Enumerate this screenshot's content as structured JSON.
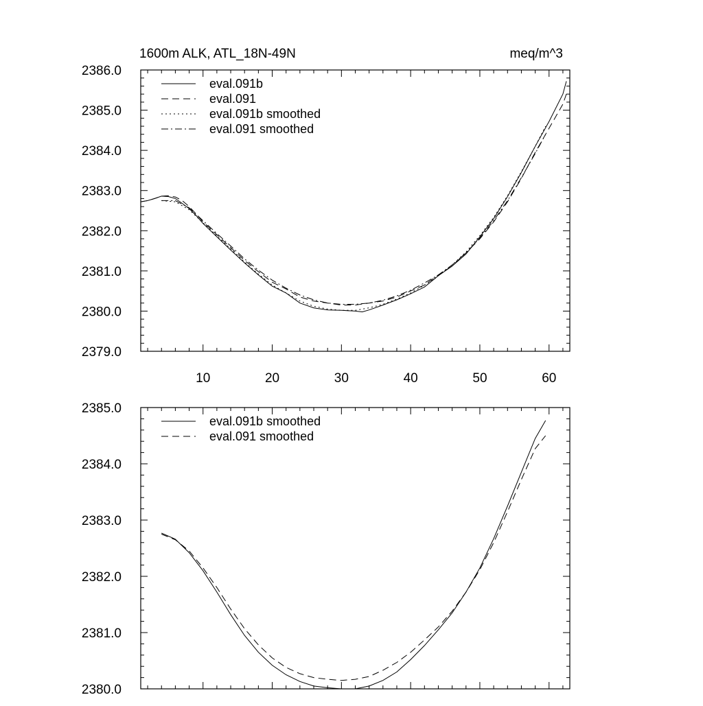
{
  "chart_data": [
    {
      "type": "line",
      "title": "1600m ALK, ATL_18N-49N",
      "units": "meq/m^3",
      "xlim": [
        1,
        63
      ],
      "ylim": [
        2379.0,
        2386.0
      ],
      "x_ticks": [
        10,
        20,
        30,
        40,
        50,
        60
      ],
      "x_tick_labels": [
        "10",
        "20",
        "30",
        "40",
        "50",
        "60"
      ],
      "y_ticks": [
        2379.0,
        2380.0,
        2381.0,
        2382.0,
        2383.0,
        2384.0,
        2385.0,
        2386.0
      ],
      "y_tick_labels": [
        "2379.0",
        "2380.0",
        "2381.0",
        "2382.0",
        "2383.0",
        "2384.0",
        "2385.0",
        "2386.0"
      ],
      "legend_position": "top-left",
      "series": [
        {
          "name": "eval.091b",
          "dash": "solid",
          "points": [
            [
              1,
              2382.72
            ],
            [
              2,
              2382.75
            ],
            [
              3,
              2382.8
            ],
            [
              4,
              2382.86
            ],
            [
              5,
              2382.85
            ],
            [
              6,
              2382.8
            ],
            [
              7,
              2382.68
            ],
            [
              8,
              2382.55
            ],
            [
              9,
              2382.38
            ],
            [
              10,
              2382.18
            ],
            [
              12,
              2381.85
            ],
            [
              14,
              2381.52
            ],
            [
              16,
              2381.2
            ],
            [
              18,
              2380.9
            ],
            [
              20,
              2380.62
            ],
            [
              22,
              2380.45
            ],
            [
              24,
              2380.2
            ],
            [
              26,
              2380.08
            ],
            [
              28,
              2380.03
            ],
            [
              30,
              2380.02
            ],
            [
              32,
              2380.0
            ],
            [
              33,
              2379.98
            ],
            [
              34,
              2380.03
            ],
            [
              36,
              2380.15
            ],
            [
              38,
              2380.28
            ],
            [
              40,
              2380.43
            ],
            [
              42,
              2380.6
            ],
            [
              44,
              2380.88
            ],
            [
              46,
              2381.12
            ],
            [
              48,
              2381.42
            ],
            [
              50,
              2381.85
            ],
            [
              52,
              2382.3
            ],
            [
              54,
              2382.85
            ],
            [
              56,
              2383.45
            ],
            [
              58,
              2384.1
            ],
            [
              60,
              2384.72
            ],
            [
              62,
              2385.4
            ],
            [
              62.5,
              2385.72
            ]
          ]
        },
        {
          "name": "eval.091",
          "dash": "long",
          "points": [
            [
              1,
              2382.72
            ],
            [
              2,
              2382.75
            ],
            [
              3,
              2382.8
            ],
            [
              4,
              2382.86
            ],
            [
              5,
              2382.87
            ],
            [
              6,
              2382.84
            ],
            [
              7,
              2382.75
            ],
            [
              8,
              2382.6
            ],
            [
              9,
              2382.42
            ],
            [
              10,
              2382.22
            ],
            [
              12,
              2381.9
            ],
            [
              14,
              2381.58
            ],
            [
              16,
              2381.26
            ],
            [
              18,
              2380.98
            ],
            [
              20,
              2380.72
            ],
            [
              22,
              2380.55
            ],
            [
              24,
              2380.35
            ],
            [
              26,
              2380.25
            ],
            [
              28,
              2380.2
            ],
            [
              30,
              2380.15
            ],
            [
              32,
              2380.15
            ],
            [
              34,
              2380.2
            ],
            [
              36,
              2380.25
            ],
            [
              38,
              2380.35
            ],
            [
              40,
              2380.5
            ],
            [
              42,
              2380.65
            ],
            [
              44,
              2380.9
            ],
            [
              46,
              2381.12
            ],
            [
              48,
              2381.45
            ],
            [
              50,
              2381.8
            ],
            [
              52,
              2382.22
            ],
            [
              54,
              2382.72
            ],
            [
              56,
              2383.3
            ],
            [
              58,
              2383.95
            ],
            [
              60,
              2384.55
            ],
            [
              62,
              2385.15
            ],
            [
              62.5,
              2385.4
            ]
          ]
        },
        {
          "name": "eval.091b smoothed",
          "dash": "dot",
          "points": [
            [
              4,
              2382.75
            ],
            [
              6,
              2382.72
            ],
            [
              8,
              2382.52
            ],
            [
              10,
              2382.2
            ],
            [
              12,
              2381.87
            ],
            [
              14,
              2381.55
            ],
            [
              16,
              2381.22
            ],
            [
              18,
              2380.92
            ],
            [
              20,
              2380.65
            ],
            [
              22,
              2380.45
            ],
            [
              24,
              2380.25
            ],
            [
              26,
              2380.12
            ],
            [
              28,
              2380.05
            ],
            [
              30,
              2380.02
            ],
            [
              32,
              2380.02
            ],
            [
              34,
              2380.08
            ],
            [
              36,
              2380.17
            ],
            [
              38,
              2380.3
            ],
            [
              40,
              2380.45
            ],
            [
              42,
              2380.65
            ],
            [
              44,
              2380.88
            ],
            [
              46,
              2381.15
            ],
            [
              48,
              2381.47
            ],
            [
              50,
              2381.88
            ],
            [
              52,
              2382.33
            ],
            [
              54,
              2382.87
            ],
            [
              56,
              2383.47
            ],
            [
              58,
              2384.1
            ],
            [
              59.5,
              2384.6
            ]
          ]
        },
        {
          "name": "eval.091 smoothed",
          "dash": "dashdot",
          "points": [
            [
              4,
              2382.75
            ],
            [
              6,
              2382.75
            ],
            [
              8,
              2382.57
            ],
            [
              10,
              2382.25
            ],
            [
              12,
              2381.93
            ],
            [
              14,
              2381.62
            ],
            [
              16,
              2381.3
            ],
            [
              18,
              2381.02
            ],
            [
              20,
              2380.77
            ],
            [
              22,
              2380.57
            ],
            [
              24,
              2380.4
            ],
            [
              26,
              2380.28
            ],
            [
              28,
              2380.2
            ],
            [
              30,
              2380.17
            ],
            [
              32,
              2380.17
            ],
            [
              34,
              2380.2
            ],
            [
              36,
              2380.27
            ],
            [
              38,
              2380.38
            ],
            [
              40,
              2380.52
            ],
            [
              42,
              2380.7
            ],
            [
              44,
              2380.9
            ],
            [
              46,
              2381.15
            ],
            [
              48,
              2381.45
            ],
            [
              50,
              2381.82
            ],
            [
              52,
              2382.25
            ],
            [
              54,
              2382.75
            ],
            [
              56,
              2383.32
            ],
            [
              58,
              2383.92
            ],
            [
              59.5,
              2384.4
            ]
          ]
        }
      ]
    },
    {
      "type": "line",
      "xlim": [
        1,
        63
      ],
      "ylim": [
        2380.0,
        2385.0
      ],
      "x_ticks": [
        10,
        20,
        30,
        40,
        50,
        60
      ],
      "y_ticks": [
        2380.0,
        2381.0,
        2382.0,
        2383.0,
        2384.0,
        2385.0
      ],
      "y_tick_labels": [
        "2380.0",
        "2381.0",
        "2382.0",
        "2383.0",
        "2384.0",
        "2385.0"
      ],
      "legend_position": "top-left",
      "series": [
        {
          "name": "eval.091b smoothed",
          "dash": "solid",
          "points": [
            [
              4,
              2382.77
            ],
            [
              6,
              2382.66
            ],
            [
              8,
              2382.42
            ],
            [
              10,
              2382.1
            ],
            [
              12,
              2381.72
            ],
            [
              14,
              2381.32
            ],
            [
              16,
              2380.95
            ],
            [
              18,
              2380.65
            ],
            [
              20,
              2380.42
            ],
            [
              22,
              2380.25
            ],
            [
              24,
              2380.13
            ],
            [
              26,
              2380.05
            ],
            [
              28,
              2380.02
            ],
            [
              30,
              2380.0
            ],
            [
              32,
              2380.0
            ],
            [
              34,
              2380.05
            ],
            [
              36,
              2380.15
            ],
            [
              38,
              2380.3
            ],
            [
              40,
              2380.52
            ],
            [
              42,
              2380.77
            ],
            [
              44,
              2381.05
            ],
            [
              46,
              2381.35
            ],
            [
              48,
              2381.72
            ],
            [
              50,
              2382.15
            ],
            [
              52,
              2382.67
            ],
            [
              54,
              2383.25
            ],
            [
              56,
              2383.85
            ],
            [
              58,
              2384.45
            ],
            [
              59.5,
              2384.77
            ]
          ]
        },
        {
          "name": "eval.091 smoothed",
          "dash": "long",
          "points": [
            [
              4,
              2382.75
            ],
            [
              6,
              2382.65
            ],
            [
              8,
              2382.45
            ],
            [
              10,
              2382.15
            ],
            [
              12,
              2381.8
            ],
            [
              14,
              2381.42
            ],
            [
              16,
              2381.07
            ],
            [
              18,
              2380.78
            ],
            [
              20,
              2380.55
            ],
            [
              22,
              2380.38
            ],
            [
              24,
              2380.27
            ],
            [
              26,
              2380.2
            ],
            [
              28,
              2380.17
            ],
            [
              30,
              2380.15
            ],
            [
              32,
              2380.17
            ],
            [
              34,
              2380.22
            ],
            [
              36,
              2380.33
            ],
            [
              38,
              2380.47
            ],
            [
              40,
              2380.65
            ],
            [
              42,
              2380.87
            ],
            [
              44,
              2381.1
            ],
            [
              46,
              2381.38
            ],
            [
              48,
              2381.72
            ],
            [
              50,
              2382.12
            ],
            [
              52,
              2382.6
            ],
            [
              54,
              2383.15
            ],
            [
              56,
              2383.72
            ],
            [
              58,
              2384.27
            ],
            [
              59.5,
              2384.5
            ]
          ]
        }
      ]
    }
  ]
}
